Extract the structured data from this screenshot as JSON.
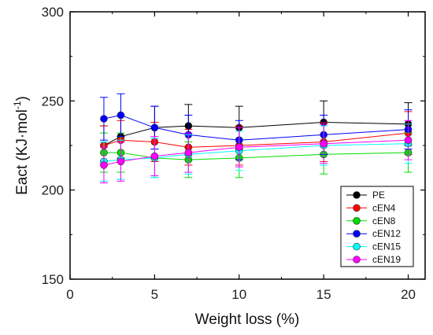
{
  "chart_data": {
    "type": "line",
    "title": "",
    "xlabel": "Weight loss (%)",
    "ylabel": "Eact (KJ·mol",
    "ylabel_superscript": "-1",
    "ylabel_close": ")",
    "xlim": [
      0,
      21
    ],
    "ylim": [
      150,
      300
    ],
    "xticks": [
      0,
      5,
      10,
      15,
      20
    ],
    "yticks": [
      150,
      200,
      250,
      300
    ],
    "grid": false,
    "legend_position": "bottom-right",
    "x": [
      2,
      3,
      5,
      7,
      10,
      15,
      20
    ],
    "series": [
      {
        "name": "PE",
        "color": "#000000",
        "values": [
          225,
          230,
          235,
          236,
          235,
          238,
          237
        ],
        "errors": [
          11,
          12,
          12,
          12,
          12,
          12,
          12
        ]
      },
      {
        "name": "cEN4",
        "color": "#ff0000",
        "values": [
          225,
          228,
          227,
          224,
          225,
          227,
          232
        ],
        "errors": [
          11,
          11,
          11,
          10,
          11,
          11,
          12
        ]
      },
      {
        "name": "cEN8",
        "color": "#00dd00",
        "values": [
          221,
          221,
          218,
          217,
          218,
          220,
          221
        ],
        "errors": [
          11,
          11,
          11,
          10,
          11,
          11,
          11
        ]
      },
      {
        "name": "cEN12",
        "color": "#0000ff",
        "values": [
          240,
          242,
          235,
          231,
          228,
          231,
          234
        ],
        "errors": [
          12,
          12,
          12,
          11,
          11,
          11,
          11
        ]
      },
      {
        "name": "cEN15",
        "color": "#00ffff",
        "values": [
          216,
          217,
          218,
          220,
          222,
          225,
          226
        ],
        "errors": [
          11,
          11,
          11,
          11,
          11,
          11,
          11
        ]
      },
      {
        "name": "cEN19",
        "color": "#ff00ff",
        "values": [
          214,
          216,
          219,
          221,
          224,
          226,
          228
        ],
        "errors": [
          10,
          11,
          11,
          11,
          11,
          11,
          11
        ]
      }
    ]
  }
}
